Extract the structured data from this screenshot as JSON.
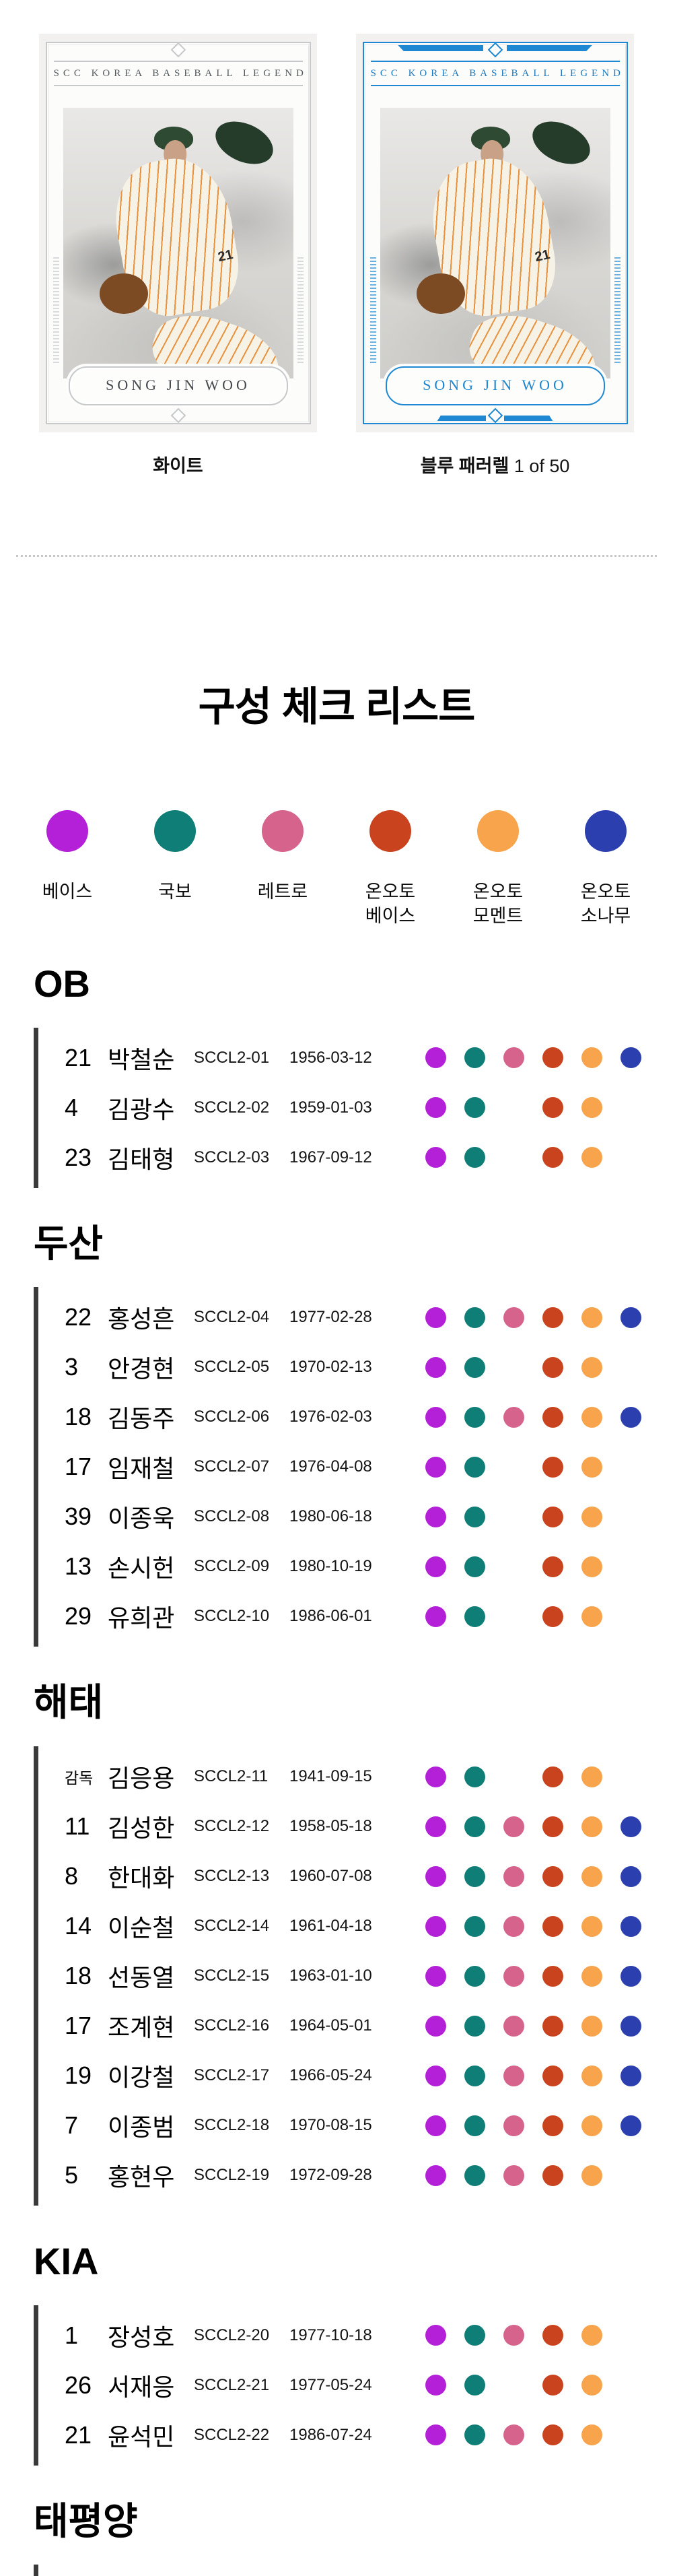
{
  "cards": {
    "brand_title": "SCC KOREA BASEBALL LEGEND",
    "player_name": "SONG JIN WOO",
    "jersey_number": "21",
    "variants": [
      {
        "label": "화이트",
        "suffix": ""
      },
      {
        "label": "블루 패러렐",
        "suffix": " 1 of 50"
      }
    ]
  },
  "checklist": {
    "title": "구성 체크 리스트",
    "legend": [
      {
        "key": "base",
        "label": "베이스",
        "color": "#b320d8"
      },
      {
        "key": "national-treasure",
        "label": "국보",
        "color": "#0f7e77"
      },
      {
        "key": "retro",
        "label": "레트로",
        "color": "#d6638c"
      },
      {
        "key": "onauto-base",
        "label": "온오토\n베이스",
        "color": "#c9441e"
      },
      {
        "key": "onauto-moment",
        "label": "온오토\n모멘트",
        "color": "#f8a44d"
      },
      {
        "key": "onauto-pine",
        "label": "온오토\n소나무",
        "color": "#2c3fae"
      }
    ],
    "sections": [
      {
        "team": "OB",
        "rows": [
          {
            "no": "21",
            "name": "박철순",
            "card_id": "SCCL2-01",
            "birth": "1956-03-12",
            "dots": [
              1,
              1,
              1,
              1,
              1,
              1
            ]
          },
          {
            "no": "4",
            "name": "김광수",
            "card_id": "SCCL2-02",
            "birth": "1959-01-03",
            "dots": [
              1,
              1,
              0,
              1,
              1,
              0
            ]
          },
          {
            "no": "23",
            "name": "김태형",
            "card_id": "SCCL2-03",
            "birth": "1967-09-12",
            "dots": [
              1,
              1,
              0,
              1,
              1,
              0
            ]
          }
        ]
      },
      {
        "team": "두산",
        "rows": [
          {
            "no": "22",
            "name": "홍성흔",
            "card_id": "SCCL2-04",
            "birth": "1977-02-28",
            "dots": [
              1,
              1,
              1,
              1,
              1,
              1
            ]
          },
          {
            "no": "3",
            "name": "안경현",
            "card_id": "SCCL2-05",
            "birth": "1970-02-13",
            "dots": [
              1,
              1,
              0,
              1,
              1,
              0
            ]
          },
          {
            "no": "18",
            "name": "김동주",
            "card_id": "SCCL2-06",
            "birth": "1976-02-03",
            "dots": [
              1,
              1,
              1,
              1,
              1,
              1
            ]
          },
          {
            "no": "17",
            "name": "임재철",
            "card_id": "SCCL2-07",
            "birth": "1976-04-08",
            "dots": [
              1,
              1,
              0,
              1,
              1,
              0
            ]
          },
          {
            "no": "39",
            "name": "이종욱",
            "card_id": "SCCL2-08",
            "birth": "1980-06-18",
            "dots": [
              1,
              1,
              0,
              1,
              1,
              0
            ]
          },
          {
            "no": "13",
            "name": "손시헌",
            "card_id": "SCCL2-09",
            "birth": "1980-10-19",
            "dots": [
              1,
              1,
              0,
              1,
              1,
              0
            ]
          },
          {
            "no": "29",
            "name": "유희관",
            "card_id": "SCCL2-10",
            "birth": "1986-06-01",
            "dots": [
              1,
              1,
              0,
              1,
              1,
              0
            ]
          }
        ]
      },
      {
        "team": "해태",
        "rows": [
          {
            "no": "감독",
            "name": "김응용",
            "card_id": "SCCL2-11",
            "birth": "1941-09-15",
            "dots": [
              1,
              1,
              0,
              1,
              1,
              0
            ]
          },
          {
            "no": "11",
            "name": "김성한",
            "card_id": "SCCL2-12",
            "birth": "1958-05-18",
            "dots": [
              1,
              1,
              1,
              1,
              1,
              1
            ]
          },
          {
            "no": "8",
            "name": "한대화",
            "card_id": "SCCL2-13",
            "birth": "1960-07-08",
            "dots": [
              1,
              1,
              1,
              1,
              1,
              1
            ]
          },
          {
            "no": "14",
            "name": "이순철",
            "card_id": "SCCL2-14",
            "birth": "1961-04-18",
            "dots": [
              1,
              1,
              1,
              1,
              1,
              1
            ]
          },
          {
            "no": "18",
            "name": "선동열",
            "card_id": "SCCL2-15",
            "birth": "1963-01-10",
            "dots": [
              1,
              1,
              1,
              1,
              1,
              1
            ]
          },
          {
            "no": "17",
            "name": "조계현",
            "card_id": "SCCL2-16",
            "birth": "1964-05-01",
            "dots": [
              1,
              1,
              1,
              1,
              1,
              1
            ]
          },
          {
            "no": "19",
            "name": "이강철",
            "card_id": "SCCL2-17",
            "birth": "1966-05-24",
            "dots": [
              1,
              1,
              1,
              1,
              1,
              1
            ]
          },
          {
            "no": "7",
            "name": "이종범",
            "card_id": "SCCL2-18",
            "birth": "1970-08-15",
            "dots": [
              1,
              1,
              1,
              1,
              1,
              1
            ]
          },
          {
            "no": "5",
            "name": "홍현우",
            "card_id": "SCCL2-19",
            "birth": "1972-09-28",
            "dots": [
              1,
              1,
              1,
              1,
              1,
              0
            ]
          }
        ]
      },
      {
        "team": "KIA",
        "rows": [
          {
            "no": "1",
            "name": "장성호",
            "card_id": "SCCL2-20",
            "birth": "1977-10-18",
            "dots": [
              1,
              1,
              1,
              1,
              1,
              0
            ]
          },
          {
            "no": "26",
            "name": "서재응",
            "card_id": "SCCL2-21",
            "birth": "1977-05-24",
            "dots": [
              1,
              1,
              0,
              1,
              1,
              0
            ]
          },
          {
            "no": "21",
            "name": "윤석민",
            "card_id": "SCCL2-22",
            "birth": "1986-07-24",
            "dots": [
              1,
              1,
              1,
              1,
              1,
              0
            ]
          }
        ]
      },
      {
        "team": "태평양",
        "rows": []
      }
    ]
  }
}
